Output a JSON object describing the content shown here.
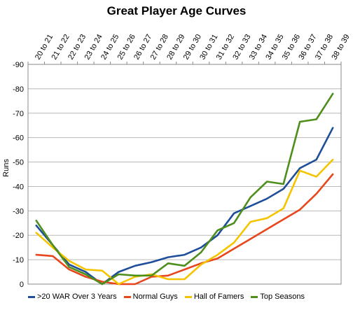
{
  "chart_data": {
    "type": "line",
    "title": "Great Player Age Curves",
    "xlabel": "",
    "ylabel": "Runs",
    "ylim": [
      -90,
      0
    ],
    "yticks": [
      0,
      -10,
      -20,
      -30,
      -40,
      -50,
      -60,
      -70,
      -80,
      -90
    ],
    "grid": true,
    "legend_position": "bottom",
    "categories": [
      "20 to 21",
      "21 to 22",
      "22 to 23",
      "23 to 24",
      "24 to 25",
      "25 to 26",
      "26 to 27",
      "27 to 28",
      "28 to 29",
      "29 to 30",
      "30 to 31",
      "31 to 32",
      "32 to 33",
      "33 to 34",
      "34 to 35",
      "35 to 36",
      "36 to 37",
      "37 to 38",
      "38 to 39"
    ],
    "series": [
      {
        "name": ">20 WAR Over 3 Years",
        "color": "#1f4e9a",
        "values": [
          -24,
          -16,
          -8,
          -5,
          0,
          -5,
          -7.5,
          -9,
          -11,
          -12,
          -15,
          -20,
          -29,
          -32,
          -35,
          -39,
          -47.5,
          -51,
          -64
        ]
      },
      {
        "name": "Normal Guys",
        "color": "#e8461c",
        "values": [
          -12,
          -11.5,
          -6,
          -3,
          -1,
          0,
          0,
          -3,
          -3.5,
          -6,
          -8.5,
          -10.5,
          -14.5,
          -18.5,
          -22.5,
          -26.5,
          -30.5,
          -37,
          -45
        ]
      },
      {
        "name": "Hall of Famers",
        "color": "#f5c400",
        "values": [
          -21,
          -15,
          -9.5,
          -6,
          -5.5,
          0,
          -3,
          -4,
          -2,
          -2,
          -8,
          -12,
          -17,
          -25.5,
          -27,
          -31,
          -46.5,
          -44,
          -51
        ]
      },
      {
        "name": "Top Seasons",
        "color": "#4e8f1c",
        "values": [
          -26,
          -16,
          -7,
          -4,
          0,
          -4,
          -3.5,
          -3.5,
          -8.5,
          -7.5,
          -13,
          -22,
          -25,
          -35.5,
          -42,
          -41,
          -66.5,
          -67.5,
          -78
        ]
      }
    ]
  }
}
